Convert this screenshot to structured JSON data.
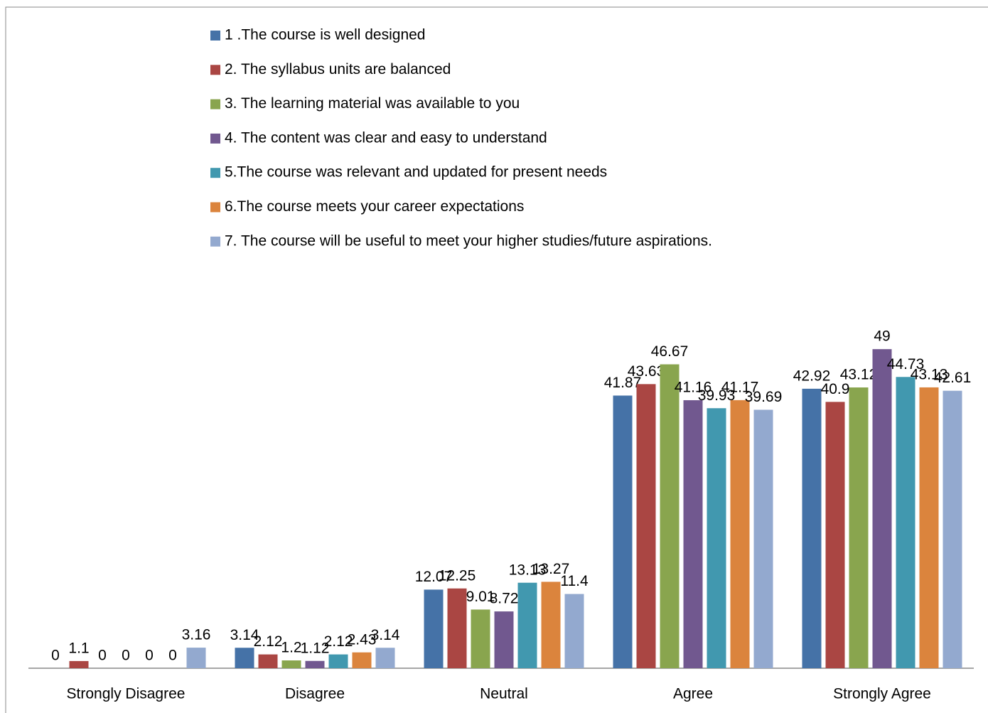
{
  "chart_data": {
    "type": "bar",
    "categories": [
      "Strongly Disagree",
      "Disagree",
      "Neutral",
      "Agree",
      "Strongly Agree"
    ],
    "series": [
      {
        "name": "1 .The course is well designed",
        "color": "#4572a7",
        "values": [
          0,
          3.14,
          12.07,
          41.87,
          42.92
        ]
      },
      {
        "name": "2. The syllabus units are balanced",
        "color": "#aa4643",
        "values": [
          1.1,
          2.12,
          12.25,
          43.63,
          40.9
        ]
      },
      {
        "name": "3. The learning material was available to you",
        "color": "#89a54e",
        "values": [
          0,
          1.2,
          9.01,
          46.67,
          43.12
        ]
      },
      {
        "name": "4. The content was clear and easy to understand",
        "color": "#71588f",
        "values": [
          0,
          1.12,
          8.72,
          41.16,
          49
        ]
      },
      {
        "name": "5.The course was relevant and updated for present needs",
        "color": "#4198af",
        "values": [
          0,
          2.12,
          13.13,
          39.93,
          44.73
        ]
      },
      {
        "name": "6.The course meets your career expectations",
        "color": "#db843d",
        "values": [
          0,
          2.43,
          13.27,
          41.17,
          43.13
        ]
      },
      {
        "name": "7. The course will be useful to meet your higher studies/future aspirations.",
        "color": "#93a9cf",
        "values": [
          3.16,
          3.14,
          11.4,
          39.69,
          42.61
        ]
      }
    ],
    "legend": "top"
  }
}
